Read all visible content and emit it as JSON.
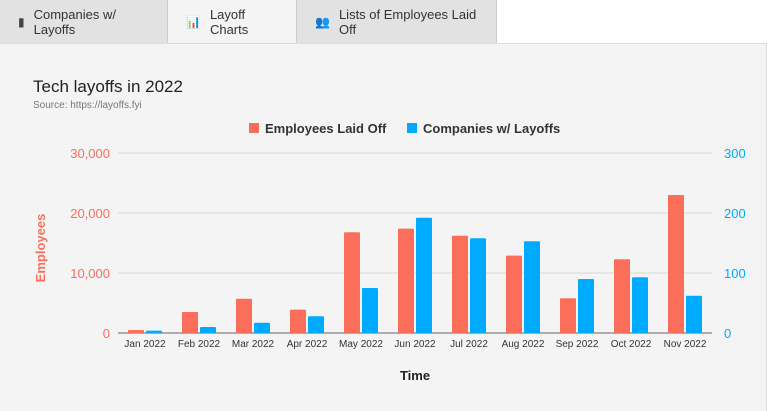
{
  "tabs": [
    {
      "label": "Companies w/ Layoffs",
      "icon": "building-icon"
    },
    {
      "label": "Layoff Charts",
      "icon": "bar-chart-icon",
      "active": true
    },
    {
      "label": "Lists of Employees Laid Off",
      "icon": "users-icon"
    }
  ],
  "colors": {
    "employees": "#fa6e5a",
    "companies": "#00aaff"
  },
  "chart_data": {
    "type": "bar",
    "title": "Tech layoffs in 2022",
    "subtitle": "Source: https://layoffs.fyi",
    "xlabel": "Time",
    "ylabel": "Employees",
    "ylabel_right": "",
    "legend_position": "top",
    "grid": true,
    "categories": [
      "Jan 2022",
      "Feb 2022",
      "Mar 2022",
      "Apr 2022",
      "May 2022",
      "Jun 2022",
      "Jul 2022",
      "Aug 2022",
      "Sep 2022",
      "Oct 2022",
      "Nov 2022"
    ],
    "ylim": [
      0,
      30000
    ],
    "yticks": [
      "0",
      "10,000",
      "20,000",
      "30,000"
    ],
    "ylim_right": [
      0,
      300
    ],
    "yticks_right": [
      "0",
      "100",
      "200",
      "300"
    ],
    "series": [
      {
        "name": "Employees Laid Off",
        "axis": "left",
        "values": [
          500,
          3500,
          5700,
          3900,
          16800,
          17400,
          16200,
          12900,
          5800,
          12300,
          23000
        ]
      },
      {
        "name": "Companies w/ Layoffs",
        "axis": "right",
        "values": [
          4,
          10,
          17,
          28,
          75,
          192,
          158,
          153,
          90,
          93,
          62
        ]
      }
    ]
  }
}
